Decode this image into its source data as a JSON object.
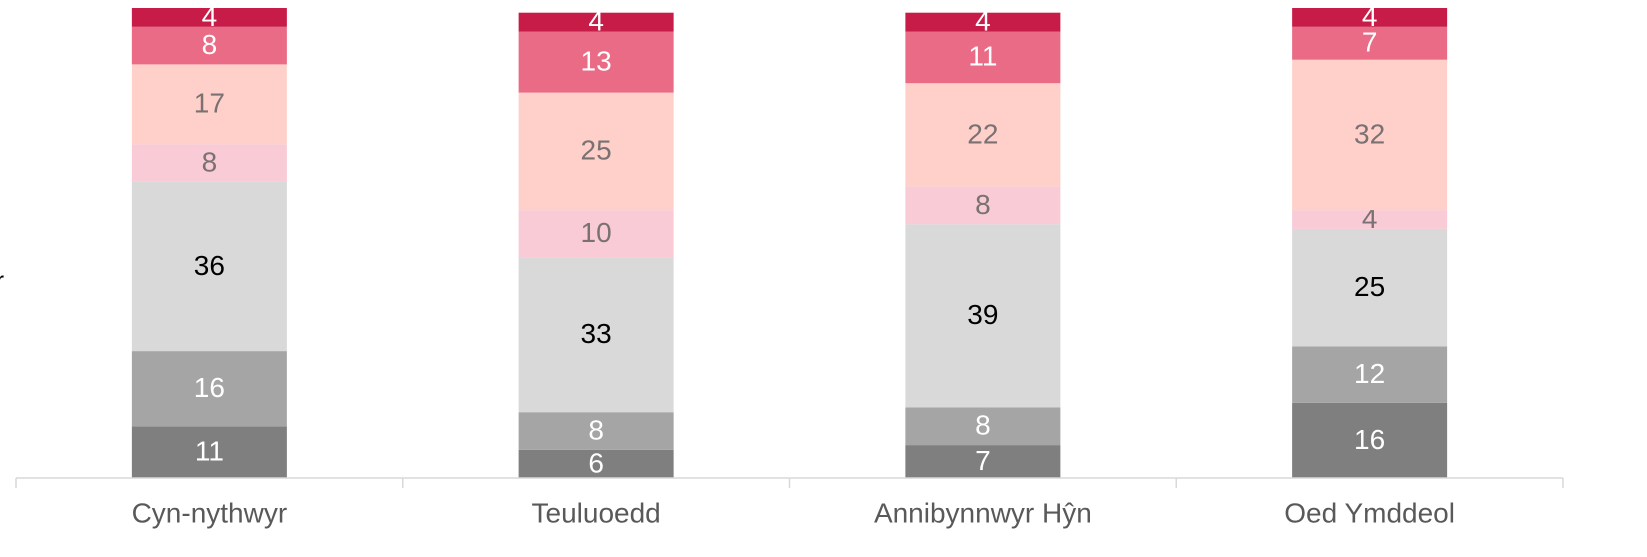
{
  "chart_data": {
    "type": "stacked_bar",
    "annotation": "r",
    "categories": [
      "Cyn-nythwyr",
      "Teuluoedd",
      "Annibynnwyr Hŷn",
      "Oed Ymddeol"
    ],
    "series": [
      {
        "color": "#7f7f7f",
        "label_color": "#ffffff",
        "values": [
          11,
          6,
          7,
          16
        ]
      },
      {
        "color": "#a5a5a5",
        "label_color": "#ffffff",
        "values": [
          16,
          8,
          8,
          12
        ]
      },
      {
        "color": "#d9d9d9",
        "label_color": "#000000",
        "values": [
          36,
          33,
          39,
          25
        ]
      },
      {
        "color": "#f8cbd6",
        "label_color": "#7a7272",
        "values": [
          8,
          10,
          8,
          4
        ]
      },
      {
        "color": "#ffd0ca",
        "label_color": "#7a7272",
        "values": [
          17,
          25,
          22,
          32
        ]
      },
      {
        "color": "#ea6b86",
        "label_color": "#ffffff",
        "values": [
          8,
          13,
          11,
          7
        ]
      },
      {
        "color": "#c71c48",
        "label_color": "#ffffff",
        "values": [
          4,
          4,
          4,
          4
        ]
      }
    ],
    "ylim": [
      0,
      100
    ]
  }
}
